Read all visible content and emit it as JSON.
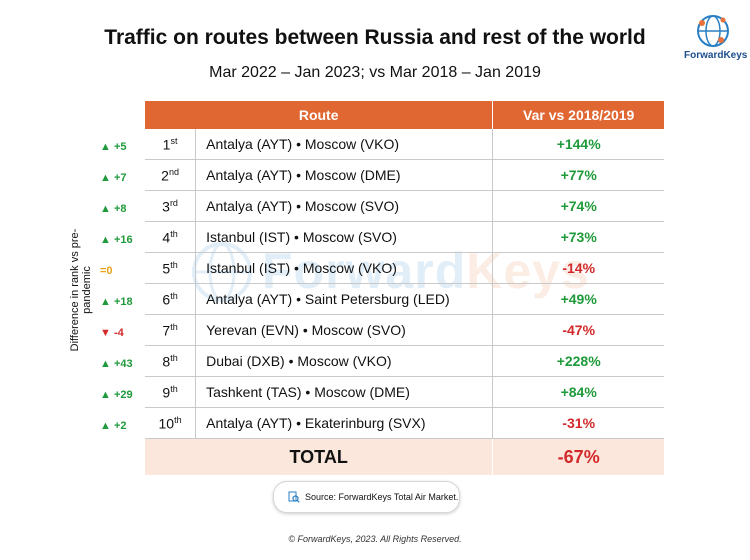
{
  "title": "Traffic on routes between Russia and rest of the world",
  "subtitle": "Mar 2022 – Jan 2023; vs Mar 2018 – Jan 2019",
  "logo": {
    "name": "ForwardKeys"
  },
  "watermark": {
    "part1": "Forward",
    "part2": "Keys"
  },
  "side_label": "Difference in rank vs pre-pandemic",
  "table": {
    "headers": {
      "route": "Route",
      "variation": "Var vs 2018/2019"
    },
    "rows": [
      {
        "change": "▲ +5",
        "dir": "up",
        "rank": "1",
        "suffix": "st",
        "route": "Antalya (AYT) • Moscow (VKO)",
        "var": "+144%",
        "sign": "pos"
      },
      {
        "change": "▲ +7",
        "dir": "up",
        "rank": "2",
        "suffix": "nd",
        "route": "Antalya (AYT) • Moscow (DME)",
        "var": "+77%",
        "sign": "pos"
      },
      {
        "change": "▲ +8",
        "dir": "up",
        "rank": "3",
        "suffix": "rd",
        "route": "Antalya (AYT) • Moscow (SVO)",
        "var": "+74%",
        "sign": "pos"
      },
      {
        "change": "▲ +16",
        "dir": "up",
        "rank": "4",
        "suffix": "th",
        "route": "Istanbul (IST) • Moscow (SVO)",
        "var": "+73%",
        "sign": "pos"
      },
      {
        "change": "=0",
        "dir": "eq",
        "rank": "5",
        "suffix": "th",
        "route": "Istanbul (IST) • Moscow (VKO)",
        "var": "-14%",
        "sign": "neg"
      },
      {
        "change": "▲ +18",
        "dir": "up",
        "rank": "6",
        "suffix": "th",
        "route": "Antalya (AYT) • Saint Petersburg (LED)",
        "var": "+49%",
        "sign": "pos"
      },
      {
        "change": "▼ -4",
        "dir": "down",
        "rank": "7",
        "suffix": "th",
        "route": "Yerevan (EVN) • Moscow (SVO)",
        "var": "-47%",
        "sign": "neg"
      },
      {
        "change": "▲ +43",
        "dir": "up",
        "rank": "8",
        "suffix": "th",
        "route": "Dubai (DXB) • Moscow (VKO)",
        "var": "+228%",
        "sign": "pos"
      },
      {
        "change": "▲ +29",
        "dir": "up",
        "rank": "9",
        "suffix": "th",
        "route": "Tashkent (TAS) • Moscow (DME)",
        "var": "+84%",
        "sign": "pos"
      },
      {
        "change": "▲ +2",
        "dir": "up",
        "rank": "10",
        "suffix": "th",
        "route": "Antalya (AYT) • Ekaterinburg (SVX)",
        "var": "-31%",
        "sign": "neg"
      }
    ],
    "total": {
      "label": "TOTAL",
      "var": "-67%"
    }
  },
  "source": "Source: ForwardKeys Total Air Market.",
  "footer": "© ForwardKeys, 2023. All Rights Reserved.",
  "colors": {
    "header": "#e06632",
    "total_bg": "#fbe7dc",
    "positive": "#1f9a3a",
    "negative": "#d22a2a",
    "neutral": "#e8a317",
    "brand": "#1c4e8c"
  },
  "icons": {
    "logo": "globe-network-icon",
    "source": "document-search-icon"
  }
}
